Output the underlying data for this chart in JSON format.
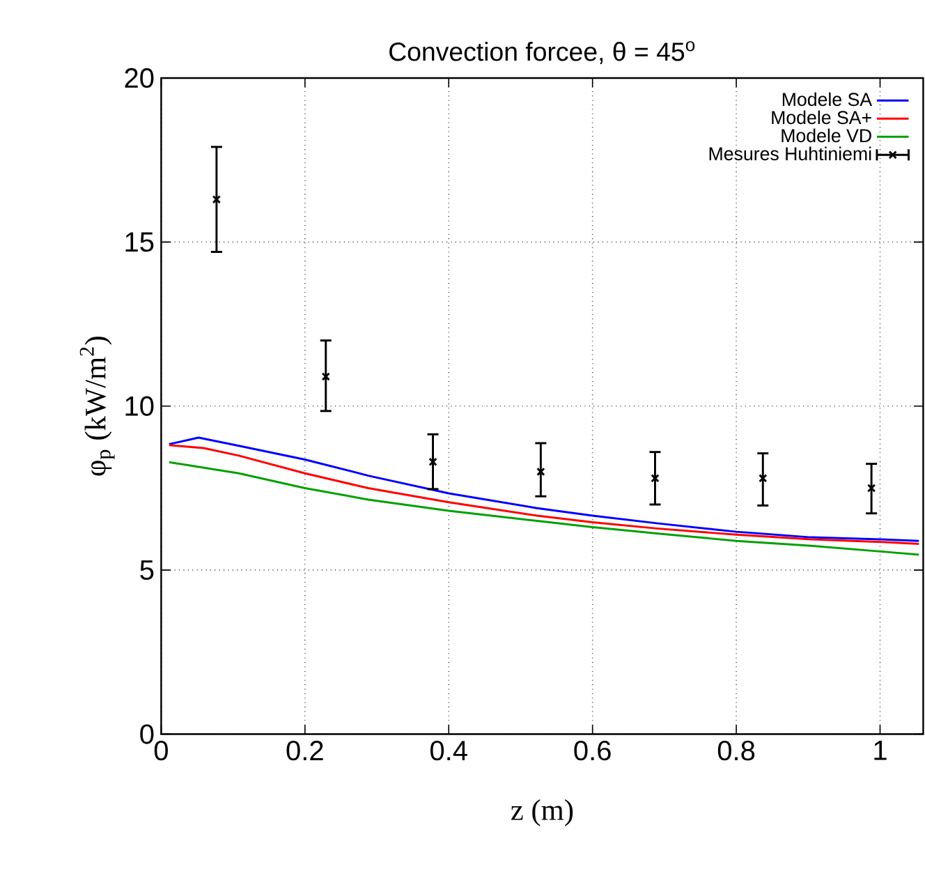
{
  "chart_data": {
    "type": "line",
    "title": "Convection forcee, θ = 45$^{o}$",
    "xlabel": "z (m)",
    "ylabel": "φ$_{p}$ (kW/m$^{2}$)",
    "xlim": [
      0,
      1.06
    ],
    "ylim": [
      0,
      20
    ],
    "xticks": [
      0,
      0.2,
      0.4,
      0.6,
      0.8,
      1
    ],
    "yticks": [
      0,
      5,
      10,
      15,
      20
    ],
    "grid": true,
    "legend": "top right",
    "series": [
      {
        "name": "Modele SA",
        "color": "#0000ff",
        "x": [
          0.011,
          0.052,
          0.108,
          0.2,
          0.288,
          0.4,
          0.523,
          0.6,
          0.689,
          0.8,
          0.904,
          1.0,
          1.054
        ],
        "values": [
          8.84,
          9.04,
          8.79,
          8.37,
          7.88,
          7.34,
          6.89,
          6.66,
          6.43,
          6.17,
          6.0,
          5.94,
          5.89
        ]
      },
      {
        "name": "Modele SA+",
        "color": "#ff0000",
        "x": [
          0.011,
          0.059,
          0.108,
          0.2,
          0.288,
          0.4,
          0.523,
          0.6,
          0.689,
          0.8,
          0.904,
          1.0,
          1.054
        ],
        "values": [
          8.81,
          8.72,
          8.49,
          7.95,
          7.5,
          7.07,
          6.66,
          6.46,
          6.27,
          6.08,
          5.94,
          5.86,
          5.8
        ]
      },
      {
        "name": "Modele VD",
        "color": "#00a000",
        "x": [
          0.011,
          0.108,
          0.2,
          0.288,
          0.4,
          0.523,
          0.6,
          0.689,
          0.8,
          0.904,
          1.0,
          1.054
        ],
        "values": [
          8.29,
          7.95,
          7.5,
          7.15,
          6.81,
          6.5,
          6.31,
          6.12,
          5.89,
          5.74,
          5.57,
          5.47
        ]
      },
      {
        "name": "Mesures Huhtiniemi",
        "type": "scatter",
        "color": "#000000",
        "marker": "cross",
        "x": [
          0.077,
          0.229,
          0.378,
          0.528,
          0.687,
          0.837,
          0.988
        ],
        "values": [
          16.3,
          10.9,
          8.3,
          8.0,
          7.8,
          7.8,
          7.5
        ],
        "errors": [
          [
            14.7,
            17.9
          ],
          [
            9.85,
            12.0
          ],
          [
            7.47,
            9.14
          ],
          [
            7.25,
            8.87
          ],
          [
            7.0,
            8.6
          ],
          [
            6.97,
            8.56
          ],
          [
            6.73,
            8.24
          ]
        ]
      }
    ]
  }
}
